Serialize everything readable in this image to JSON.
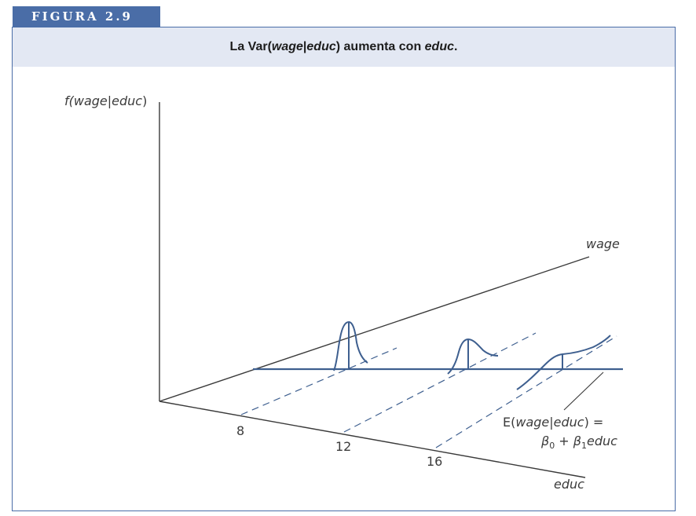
{
  "figure_tag": "FIGURA 2.9",
  "caption": {
    "prefix": "La Var(",
    "wage": "wage",
    "sep": "|",
    "educ": "educ",
    "suffix": ") aumenta con ",
    "educ2": "educ",
    "end": "."
  },
  "labels": {
    "y_axis": "f(wage|educ)",
    "y_axis_f": "f(",
    "y_axis_inner": "wage|educ",
    "y_axis_close": ")",
    "wage_axis": "wage",
    "educ_axis": "educ",
    "tick_8": "8",
    "tick_12": "12",
    "tick_16": "16",
    "eq_line1": "E(wage|educ) =",
    "eq_line1_E": "E(",
    "eq_line1_inner": "wage|educ",
    "eq_line1_tail": ") =",
    "eq_beta0": "β",
    "eq_sub0": "0",
    "eq_plus": " + ",
    "eq_beta1": "β",
    "eq_sub1": "1",
    "eq_educ": "educ"
  },
  "colors": {
    "accent": "#4a6da7",
    "caption_bg": "#e3e8f3",
    "line": "#3e5f8f",
    "axis": "#3a3a3a"
  }
}
